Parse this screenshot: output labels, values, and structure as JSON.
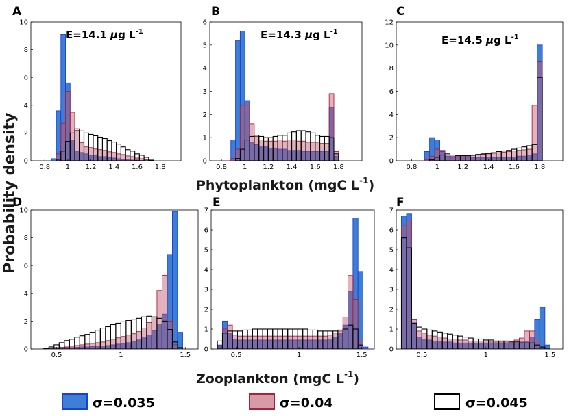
{
  "figure": {
    "ylabel": "Probability density",
    "xlabel_top": "Phytoplankton (mgC L",
    "xlabel_bottom": "Zooplankton (mgC L",
    "unit_exp": "-1",
    "unit_close": ")"
  },
  "legend": [
    {
      "label": "σ=0.035",
      "fill": "#3d7fd6",
      "stroke": "#1f3fcf"
    },
    {
      "label": "σ=0.04",
      "fill": "#d99aa8",
      "stroke": "#a3243b"
    },
    {
      "label": "σ=0.045",
      "fill": "#ffffff",
      "stroke": "#000000"
    }
  ],
  "colors": {
    "blue_fill": "#3d7fd6",
    "red_fill": "#c4556f",
    "white_fill": "#ffffff",
    "overlap": "#4a4a7e"
  },
  "chart_data": [
    {
      "id": "A",
      "type": "bar",
      "annotation": {
        "prefix": "E=14.1 ",
        "mu": "μ",
        "unit": "g L",
        "exp": "-1"
      },
      "xlim": [
        0.68,
        1.98
      ],
      "ylim": [
        0,
        10
      ],
      "xticks": [
        0.8,
        1,
        1.2,
        1.4,
        1.6,
        1.8
      ],
      "xticklabels": [
        "0.8",
        "1",
        "1.2",
        "1.4",
        "1.6",
        "1.8"
      ],
      "yticks": [
        0,
        2,
        4,
        6,
        8,
        10
      ],
      "yticklabels": [
        "0",
        "2",
        "4",
        "6",
        "8",
        "10"
      ],
      "x0": 0.86,
      "bin_width": 0.04,
      "series": [
        {
          "name": "σ=0.035",
          "values": [
            0.15,
            3.6,
            9.1,
            5.6,
            1.5,
            0.7,
            0.6,
            0.5,
            0.4,
            0.4,
            0.3,
            0.3,
            0.25,
            0.2,
            0.15,
            0.1,
            0.1,
            0.05,
            0.03,
            0.02,
            0.01,
            0
          ]
        },
        {
          "name": "σ=0.04",
          "values": [
            0,
            0.5,
            2.7,
            5.0,
            3.5,
            2.2,
            1.3,
            1.0,
            0.95,
            0.85,
            0.8,
            0.75,
            0.65,
            0.6,
            0.5,
            0.45,
            0.35,
            0.3,
            0.2,
            0.15,
            0.08,
            0
          ]
        },
        {
          "name": "σ=0.045",
          "values": [
            0,
            0.1,
            0.7,
            1.4,
            2.0,
            2.3,
            2.15,
            2.0,
            1.9,
            1.8,
            1.7,
            1.6,
            1.45,
            1.35,
            1.2,
            1.0,
            0.8,
            0.7,
            0.5,
            0.4,
            0.25,
            0.05
          ]
        }
      ]
    },
    {
      "id": "B",
      "type": "bar",
      "annotation": {
        "prefix": "E=14.3 ",
        "mu": "μ",
        "unit": "g L",
        "exp": "-1"
      },
      "xlim": [
        0.7,
        2.0
      ],
      "ylim": [
        0,
        6
      ],
      "xticks": [
        0.8,
        1,
        1.2,
        1.4,
        1.6,
        1.8
      ],
      "xticklabels": [
        "0.8",
        "1",
        "1.2",
        "1.4",
        "1.6",
        "1.8"
      ],
      "yticks": [
        0,
        1,
        2,
        3,
        4,
        5,
        6
      ],
      "yticklabels": [
        "0",
        "1",
        "2",
        "3",
        "4",
        "5",
        "6"
      ],
      "x0": 0.88,
      "bin_width": 0.04,
      "series": [
        {
          "name": "σ=0.035",
          "values": [
            0.9,
            5.2,
            5.6,
            2.6,
            0.8,
            0.7,
            0.6,
            0.6,
            0.55,
            0.55,
            0.5,
            0.5,
            0.45,
            0.45,
            0.45,
            0.4,
            0.4,
            0.4,
            0.4,
            0.4,
            0.4,
            2.3,
            0.2
          ]
        },
        {
          "name": "σ=0.04",
          "values": [
            0.1,
            0.5,
            2.4,
            2.5,
            1.6,
            1.05,
            0.9,
            0.85,
            0.85,
            0.85,
            0.9,
            0.85,
            0.9,
            0.9,
            0.85,
            0.85,
            0.8,
            0.8,
            0.8,
            0.75,
            0.75,
            2.9,
            0.4
          ]
        },
        {
          "name": "σ=0.045",
          "values": [
            0,
            0.1,
            0.5,
            0.9,
            1.05,
            1.1,
            1.05,
            1.0,
            1.0,
            1.05,
            1.1,
            1.1,
            1.2,
            1.25,
            1.3,
            1.3,
            1.25,
            1.2,
            1.1,
            1.05,
            1.05,
            1.0,
            0.3
          ]
        }
      ]
    },
    {
      "id": "C",
      "type": "bar",
      "annotation": {
        "prefix": "E=14.5 ",
        "mu": "μ",
        "unit": "g L",
        "exp": "-1"
      },
      "xlim": [
        0.68,
        1.98
      ],
      "ylim": [
        0,
        12
      ],
      "xticks": [
        0.8,
        1,
        1.2,
        1.4,
        1.6,
        1.8
      ],
      "xticklabels": [
        "0.8",
        "1",
        "1.2",
        "1.4",
        "1.6",
        "1.8"
      ],
      "yticks": [
        0,
        2,
        4,
        6,
        8,
        10,
        12
      ],
      "yticklabels": [
        "0",
        "2",
        "4",
        "6",
        "8",
        "10",
        "12"
      ],
      "x0": 0.9,
      "bin_width": 0.04,
      "series": [
        {
          "name": "σ=0.035",
          "values": [
            0.8,
            2.0,
            1.8,
            0.9,
            0.4,
            0.3,
            0.3,
            0.3,
            0.3,
            0.3,
            0.3,
            0.3,
            0.3,
            0.3,
            0.3,
            0.3,
            0.3,
            0.3,
            0.4,
            0.4,
            0.5,
            0.6,
            10.0
          ]
        },
        {
          "name": "σ=0.04",
          "values": [
            0.1,
            0.4,
            1.0,
            0.8,
            0.5,
            0.4,
            0.4,
            0.4,
            0.4,
            0.45,
            0.5,
            0.55,
            0.6,
            0.65,
            0.7,
            0.75,
            0.8,
            0.85,
            0.9,
            0.95,
            1.0,
            4.8,
            8.6
          ]
        },
        {
          "name": "σ=0.045",
          "values": [
            0,
            0.1,
            0.3,
            0.5,
            0.6,
            0.5,
            0.45,
            0.45,
            0.45,
            0.5,
            0.55,
            0.6,
            0.65,
            0.7,
            0.8,
            0.85,
            0.9,
            1.0,
            1.1,
            1.2,
            1.3,
            1.4,
            7.2
          ]
        }
      ]
    },
    {
      "id": "D",
      "type": "bar",
      "xlim": [
        0.3,
        1.6
      ],
      "ylim": [
        0,
        10
      ],
      "xticks": [
        0.5,
        1,
        1.5
      ],
      "xticklabels": [
        "0.5",
        "1",
        "1.5"
      ],
      "yticks": [
        0,
        2,
        4,
        6,
        8,
        10
      ],
      "yticklabels": [
        "0",
        "2",
        "4",
        "6",
        "8",
        "10"
      ],
      "x0": 0.4,
      "bin_width": 0.04,
      "series": [
        {
          "name": "σ=0.035",
          "values": [
            0.02,
            0.05,
            0.05,
            0.07,
            0.1,
            0.1,
            0.12,
            0.15,
            0.15,
            0.18,
            0.2,
            0.22,
            0.25,
            0.3,
            0.35,
            0.4,
            0.45,
            0.55,
            0.65,
            0.8,
            1.0,
            1.3,
            1.8,
            2.5,
            6.8,
            9.9,
            1.2
          ]
        },
        {
          "name": "σ=0.04",
          "values": [
            0.05,
            0.08,
            0.1,
            0.12,
            0.15,
            0.2,
            0.25,
            0.3,
            0.35,
            0.4,
            0.45,
            0.5,
            0.6,
            0.7,
            0.8,
            0.9,
            1.0,
            1.1,
            1.25,
            1.5,
            1.9,
            2.3,
            4.2,
            5.3,
            2.0,
            0.3,
            0
          ]
        },
        {
          "name": "σ=0.045",
          "values": [
            0.05,
            0.15,
            0.3,
            0.45,
            0.6,
            0.7,
            0.85,
            0.95,
            1.05,
            1.2,
            1.35,
            1.5,
            1.6,
            1.75,
            1.85,
            1.95,
            2.05,
            2.1,
            2.2,
            2.3,
            2.35,
            2.3,
            2.2,
            2.0,
            1.4,
            0.5,
            0.1
          ]
        }
      ]
    },
    {
      "id": "E",
      "type": "bar",
      "xlim": [
        0.3,
        1.6
      ],
      "ylim": [
        0,
        7
      ],
      "xticks": [
        0.5,
        1,
        1.5
      ],
      "xticklabels": [
        "0.5",
        "1",
        "1.5"
      ],
      "yticks": [
        0,
        1,
        2,
        3,
        4,
        5,
        6,
        7
      ],
      "yticklabels": [
        "0",
        "1",
        "2",
        "3",
        "4",
        "5",
        "6",
        "7"
      ],
      "x0": 0.35,
      "bin_width": 0.04,
      "series": [
        {
          "name": "σ=0.035",
          "values": [
            0.2,
            1.4,
            0.8,
            0.5,
            0.45,
            0.45,
            0.45,
            0.45,
            0.45,
            0.45,
            0.45,
            0.45,
            0.45,
            0.45,
            0.45,
            0.45,
            0.45,
            0.45,
            0.45,
            0.45,
            0.45,
            0.45,
            0.5,
            0.6,
            0.8,
            1.2,
            2.9,
            6.6,
            3.9,
            0.1
          ]
        },
        {
          "name": "σ=0.04",
          "values": [
            0.1,
            1.0,
            1.2,
            0.7,
            0.65,
            0.65,
            0.65,
            0.65,
            0.65,
            0.65,
            0.65,
            0.65,
            0.65,
            0.65,
            0.65,
            0.65,
            0.65,
            0.65,
            0.65,
            0.65,
            0.65,
            0.65,
            0.7,
            0.8,
            0.9,
            1.6,
            3.7,
            2.5,
            0.5,
            0
          ]
        },
        {
          "name": "σ=0.045",
          "values": [
            0.4,
            0.8,
            0.9,
            0.9,
            0.9,
            0.95,
            0.95,
            1.0,
            1.0,
            1.0,
            1.0,
            1.0,
            1.0,
            1.0,
            1.0,
            1.0,
            1.0,
            1.0,
            0.95,
            0.95,
            0.9,
            0.9,
            0.9,
            0.9,
            0.95,
            1.0,
            1.2,
            1.0,
            0.2,
            0
          ]
        }
      ]
    },
    {
      "id": "F",
      "type": "bar",
      "xlim": [
        0.3,
        1.6
      ],
      "ylim": [
        0,
        7
      ],
      "xticks": [
        0.5,
        1,
        1.5
      ],
      "xticklabels": [
        "0.5",
        "1",
        "1.5"
      ],
      "yticks": [
        0,
        1,
        2,
        3,
        4,
        5,
        6,
        7
      ],
      "yticklabels": [
        "0",
        "1",
        "2",
        "3",
        "4",
        "5",
        "6",
        "7"
      ],
      "x0": 0.34,
      "bin_width": 0.04,
      "series": [
        {
          "name": "σ=0.035",
          "values": [
            6.7,
            6.8,
            1.3,
            0.6,
            0.5,
            0.45,
            0.4,
            0.4,
            0.35,
            0.35,
            0.3,
            0.3,
            0.3,
            0.3,
            0.3,
            0.3,
            0.3,
            0.3,
            0.3,
            0.3,
            0.3,
            0.3,
            0.3,
            0.35,
            0.4,
            0.6,
            1.5,
            2.1,
            0.2,
            0
          ]
        },
        {
          "name": "σ=0.04",
          "values": [
            6.2,
            6.5,
            1.5,
            0.9,
            0.8,
            0.7,
            0.65,
            0.6,
            0.55,
            0.5,
            0.5,
            0.45,
            0.45,
            0.4,
            0.4,
            0.4,
            0.4,
            0.35,
            0.35,
            0.35,
            0.35,
            0.4,
            0.45,
            0.55,
            0.9,
            0.9,
            0.5,
            0.1,
            0,
            0
          ]
        },
        {
          "name": "σ=0.045",
          "values": [
            5.6,
            5.1,
            1.3,
            1.1,
            1.0,
            0.95,
            0.9,
            0.85,
            0.8,
            0.75,
            0.7,
            0.65,
            0.6,
            0.55,
            0.5,
            0.5,
            0.45,
            0.45,
            0.4,
            0.4,
            0.4,
            0.35,
            0.35,
            0.3,
            0.3,
            0.3,
            0.2,
            0.1,
            0.05,
            0
          ]
        }
      ]
    }
  ]
}
